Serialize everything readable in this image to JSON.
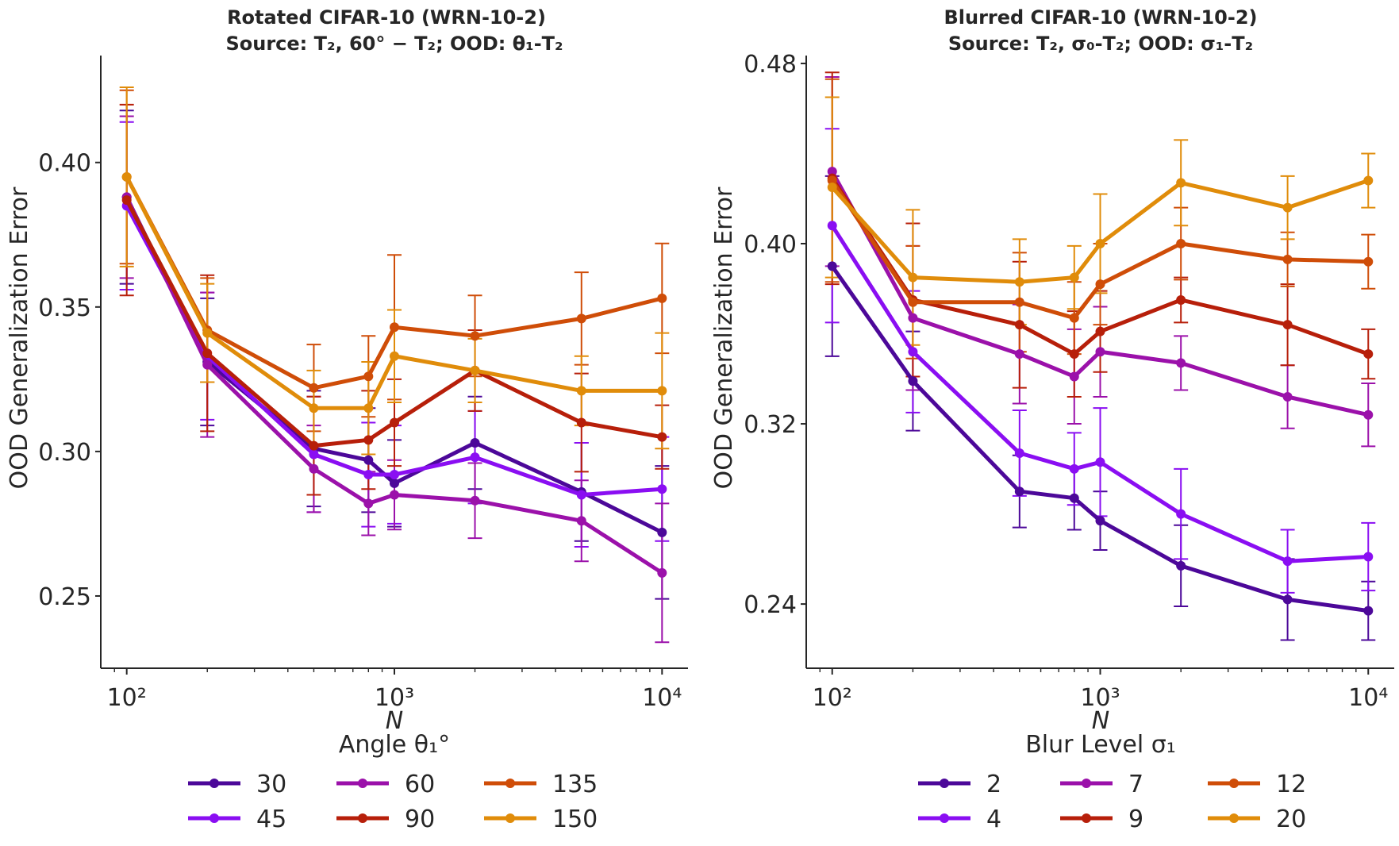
{
  "chart_data": [
    {
      "type": "line",
      "title_line1": "Rotated CIFAR-10 (WRN-10-2)",
      "title_line2": "Source: T₂, 60° − T₂; OOD: θ₁-T₂",
      "xlabel": "N",
      "ylabel": "OOD Generalization Error",
      "xscale": "log",
      "xlim": [
        80,
        12500
      ],
      "ylim": [
        0.225,
        0.437
      ],
      "x_ticks": [
        100,
        1000,
        10000
      ],
      "x_tick_labels": [
        "10²",
        "10³",
        "10⁴"
      ],
      "y_ticks": [
        0.25,
        0.3,
        0.35,
        0.4
      ],
      "y_tick_labels": [
        "0.25",
        "0.30",
        "0.35",
        "0.40"
      ],
      "x": [
        100,
        200,
        500,
        800,
        1000,
        2000,
        5000,
        10000
      ],
      "legend_title": "Angle θ₁°",
      "series": [
        {
          "name": "30",
          "color": "#4c0899",
          "values": [
            0.388,
            0.331,
            0.301,
            0.297,
            0.289,
            0.303,
            0.286,
            0.272
          ],
          "errors": [
            0.03,
            0.022,
            0.02,
            0.018,
            0.015,
            0.016,
            0.017,
            0.023
          ]
        },
        {
          "name": "45",
          "color": "#8a0ef2",
          "values": [
            0.385,
            0.333,
            0.299,
            0.292,
            0.292,
            0.298,
            0.285,
            0.287
          ],
          "errors": [
            0.029,
            0.022,
            0.02,
            0.018,
            0.017,
            0.016,
            0.018,
            0.018
          ]
        },
        {
          "name": "60",
          "color": "#9b11aa",
          "values": [
            0.388,
            0.33,
            0.294,
            0.282,
            0.285,
            0.283,
            0.276,
            0.258
          ],
          "errors": [
            0.028,
            0.025,
            0.015,
            0.011,
            0.012,
            0.013,
            0.014,
            0.024
          ]
        },
        {
          "name": "90",
          "color": "#b71f0a",
          "values": [
            0.387,
            0.334,
            0.302,
            0.304,
            0.31,
            0.328,
            0.31,
            0.305
          ],
          "errors": [
            0.033,
            0.027,
            0.017,
            0.017,
            0.015,
            0.014,
            0.017,
            0.011
          ]
        },
        {
          "name": "135",
          "color": "#cf4d08",
          "values": [
            0.395,
            0.342,
            0.322,
            0.326,
            0.343,
            0.34,
            0.346,
            0.353
          ],
          "errors": [
            0.03,
            0.018,
            0.015,
            0.014,
            0.025,
            0.014,
            0.016,
            0.019
          ]
        },
        {
          "name": "150",
          "color": "#e08c0a",
          "values": [
            0.395,
            0.341,
            0.315,
            0.315,
            0.333,
            0.328,
            0.321,
            0.321
          ],
          "errors": [
            0.031,
            0.017,
            0.013,
            0.016,
            0.016,
            0.011,
            0.012,
            0.02
          ]
        }
      ]
    },
    {
      "type": "line",
      "title_line1": "Blurred CIFAR-10 (WRN-10-2)",
      "title_line2": "Source: T₂, σ₀-T₂; OOD: σ₁-T₂",
      "xlabel": "N",
      "ylabel": "OOD Generalization Error",
      "xscale": "log",
      "xlim": [
        80,
        12500
      ],
      "ylim": [
        0.2115,
        0.4835
      ],
      "x_ticks": [
        100,
        1000,
        10000
      ],
      "x_tick_labels": [
        "10²",
        "10³",
        "10⁴"
      ],
      "y_ticks": [
        0.24,
        0.32,
        0.4,
        0.48
      ],
      "y_tick_labels": [
        "0.24",
        "0.32",
        "0.40",
        "0.48"
      ],
      "x": [
        100,
        200,
        500,
        800,
        1000,
        2000,
        5000,
        10000
      ],
      "legend_title": "Blur Level σ₁",
      "series": [
        {
          "name": "2",
          "color": "#4c0899",
          "values": [
            0.39,
            0.339,
            0.29,
            0.287,
            0.277,
            0.257,
            0.242,
            0.237
          ],
          "errors": [
            0.04,
            0.022,
            0.016,
            0.014,
            0.013,
            0.018,
            0.018,
            0.013
          ]
        },
        {
          "name": "4",
          "color": "#8a0ef2",
          "values": [
            0.408,
            0.352,
            0.307,
            0.3,
            0.303,
            0.28,
            0.259,
            0.261
          ],
          "errors": [
            0.043,
            0.027,
            0.019,
            0.016,
            0.024,
            0.02,
            0.014,
            0.015
          ]
        },
        {
          "name": "7",
          "color": "#9b11aa",
          "values": [
            0.432,
            0.367,
            0.351,
            0.341,
            0.352,
            0.347,
            0.332,
            0.324
          ],
          "errors": [
            0.042,
            0.032,
            0.022,
            0.021,
            0.02,
            0.012,
            0.014,
            0.014
          ]
        },
        {
          "name": "9",
          "color": "#b71f0a",
          "values": [
            0.429,
            0.375,
            0.364,
            0.351,
            0.361,
            0.375,
            0.364,
            0.351
          ],
          "errors": [
            0.047,
            0.034,
            0.028,
            0.019,
            0.018,
            0.01,
            0.018,
            0.011
          ]
        },
        {
          "name": "12",
          "color": "#cf4d08",
          "values": [
            0.428,
            0.374,
            0.374,
            0.367,
            0.382,
            0.4,
            0.393,
            0.392
          ],
          "errors": [
            0.045,
            0.025,
            0.022,
            0.016,
            0.018,
            0.016,
            0.012,
            0.012
          ]
        },
        {
          "name": "20",
          "color": "#e08c0a",
          "values": [
            0.425,
            0.385,
            0.383,
            0.385,
            0.4,
            0.427,
            0.416,
            0.428
          ],
          "errors": [
            0.04,
            0.03,
            0.019,
            0.014,
            0.022,
            0.019,
            0.014,
            0.012
          ]
        }
      ]
    }
  ]
}
